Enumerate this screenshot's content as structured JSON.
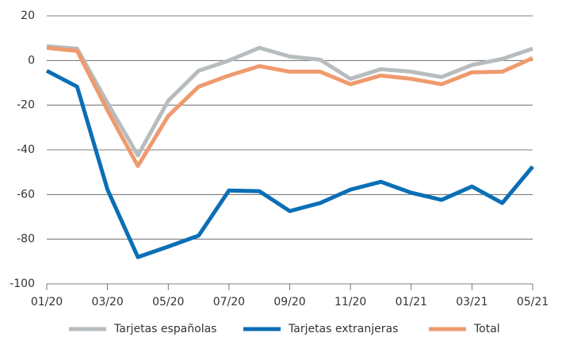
{
  "chart_data": {
    "type": "line",
    "categories": [
      "01/20",
      null,
      "03/20",
      null,
      "05/20",
      null,
      "07/20",
      null,
      "09/20",
      null,
      "11/20",
      null,
      "01/21",
      null,
      "03/21",
      null,
      "05/21"
    ],
    "series": [
      {
        "name": "Tarjetas españolas",
        "color": "#b7bcbf",
        "values": [
          6.4,
          5.3,
          -19,
          -42.5,
          -18,
          -4.6,
          0,
          5.7,
          1.8,
          0.4,
          -8.2,
          -3.9,
          -5,
          -7.4,
          -2,
          0.7,
          5.3
        ]
      },
      {
        "name": "Tarjetas extranjeras",
        "color": "#0a6fb5",
        "values": [
          -4.6,
          -11.7,
          -57.8,
          -88,
          -83.3,
          -78.4,
          -58.2,
          -58.5,
          -67.4,
          -63.8,
          -57.8,
          -54.3,
          -59.2,
          -62.4,
          -56.4,
          -63.8,
          -47.5
        ]
      },
      {
        "name": "Total",
        "color": "#ef9a6e",
        "values": [
          5.7,
          4.3,
          -22.3,
          -47.2,
          -24.8,
          -11.7,
          -6.7,
          -2.5,
          -5,
          -5,
          -10.6,
          -6.7,
          -8.2,
          -10.6,
          -5.3,
          -5,
          1.1
        ]
      }
    ],
    "ylim": [
      -100,
      20
    ],
    "yticks": [
      -100,
      -80,
      -60,
      -40,
      -20,
      0,
      20
    ],
    "grid": true,
    "legend": "bottom"
  }
}
